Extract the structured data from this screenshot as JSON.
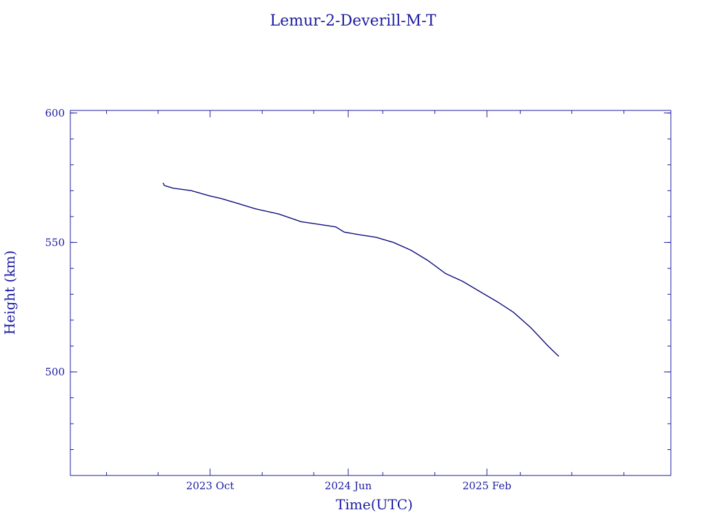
{
  "chart_data": {
    "type": "line",
    "title": "Lemur-2-Deverill-M-T",
    "xlabel": "Time(UTC)",
    "ylabel": "Height (km)",
    "ylim": [
      460,
      601
    ],
    "xlim": [
      "2023-01-27",
      "2025-12-23"
    ],
    "x_ticks": [
      {
        "date": "2023-10-01",
        "label": "2023 Oct"
      },
      {
        "date": "2024-06-01",
        "label": "2024 Jun"
      },
      {
        "date": "2025-02-01",
        "label": "2025 Feb"
      }
    ],
    "x_minor_ticks": [
      "2023-04-01",
      "2023-07-01",
      "2024-01-01",
      "2024-04-01",
      "2024-08-01",
      "2024-11-01",
      "2025-04-01",
      "2025-07-01",
      "2025-10-01"
    ],
    "y_ticks": [
      500,
      550,
      600
    ],
    "y_minor_step": 10,
    "color": "#0a0a7a",
    "series": [
      {
        "x": [
          "2023-07-10",
          "2023-07-12",
          "2023-07-27",
          "2023-08-29",
          "2023-09-30",
          "2023-10-20",
          "2023-11-20",
          "2023-12-20",
          "2024-01-30",
          "2024-03-10",
          "2024-04-10",
          "2024-05-10",
          "2024-05-25",
          "2024-06-20",
          "2024-07-20",
          "2024-08-20",
          "2024-09-20",
          "2024-10-20",
          "2024-11-20",
          "2024-12-20",
          "2025-01-20",
          "2025-02-20",
          "2025-03-20",
          "2025-04-20",
          "2025-05-20",
          "2025-06-08"
        ],
        "y": [
          573,
          572,
          571,
          570,
          568,
          567,
          565,
          563,
          561,
          558,
          557,
          556,
          554,
          553,
          552,
          550,
          547,
          543,
          538,
          535,
          531,
          527,
          523,
          517,
          510,
          506
        ]
      }
    ]
  }
}
